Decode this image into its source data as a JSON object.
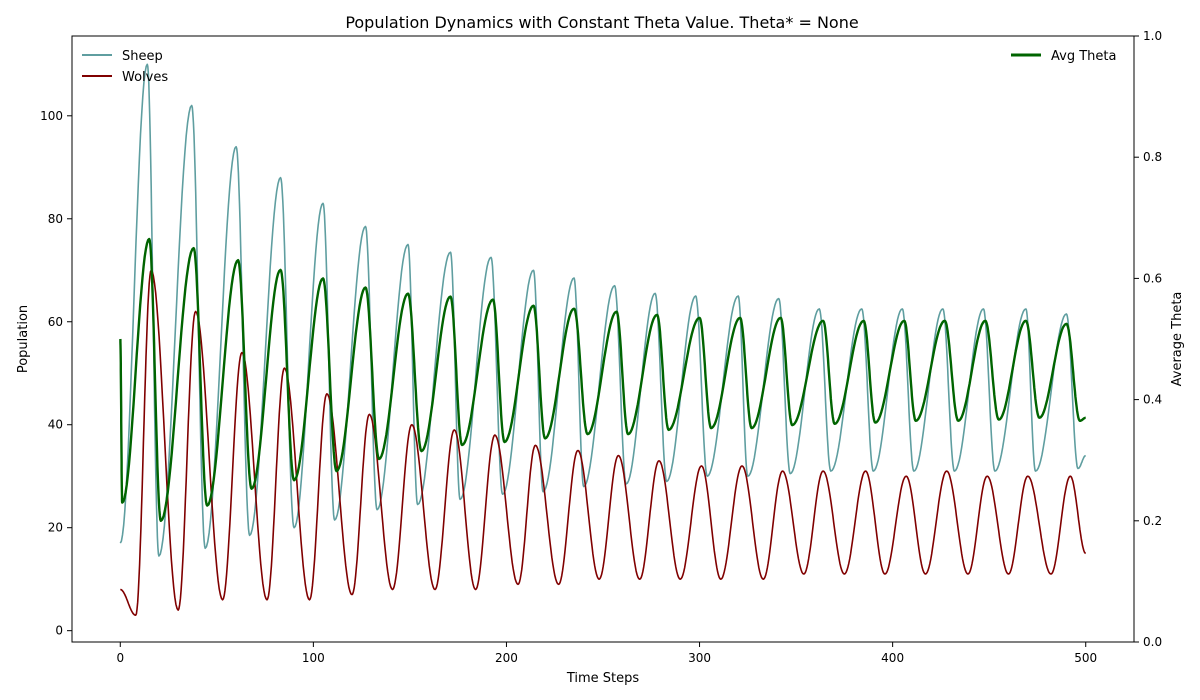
{
  "chart_data": {
    "type": "line",
    "title": "Population Dynamics with Constant Theta Value. Theta* = None",
    "xlabel": "Time Steps",
    "ylabel": "Population",
    "y2label": "Average Theta",
    "xlim": [
      -25,
      525
    ],
    "ylim": [
      -2.2,
      115.5
    ],
    "y2lim": [
      0.0,
      1.0
    ],
    "xticks": [
      0,
      100,
      200,
      300,
      400,
      500
    ],
    "yticks": [
      0,
      20,
      40,
      60,
      80,
      100
    ],
    "y2ticks": [
      "0.0",
      "0.2",
      "0.4",
      "0.6",
      "0.8",
      "1.0"
    ],
    "grid": false,
    "legend_left": {
      "placement": "top-left",
      "entries": [
        "Sheep",
        "Wolves"
      ]
    },
    "legend_right": {
      "placement": "top-right",
      "entries": [
        "Avg Theta"
      ]
    },
    "series": [
      {
        "name": "Sheep",
        "axis": "left",
        "color": "#5f9ea0",
        "peaks": [
          [
            14,
            110
          ],
          [
            37,
            102
          ],
          [
            60,
            94
          ],
          [
            83,
            88
          ],
          [
            105,
            83
          ],
          [
            127,
            78.5
          ],
          [
            149,
            75
          ],
          [
            171,
            73.5
          ],
          [
            192,
            72.5
          ],
          [
            214,
            70
          ],
          [
            235,
            68.5
          ],
          [
            256,
            67
          ],
          [
            277,
            65.5
          ],
          [
            298,
            65
          ],
          [
            320,
            65
          ],
          [
            341,
            64.5
          ],
          [
            362,
            62.5
          ],
          [
            384,
            62.5
          ],
          [
            405,
            62.5
          ],
          [
            426,
            62.5
          ],
          [
            447,
            62.5
          ],
          [
            469,
            62.5
          ],
          [
            490,
            61.5
          ]
        ],
        "troughs": [
          [
            0,
            17
          ],
          [
            20,
            14.5
          ],
          [
            44,
            16
          ],
          [
            67,
            18.5
          ],
          [
            90,
            20
          ],
          [
            111,
            21.5
          ],
          [
            133,
            23.5
          ],
          [
            154,
            24.5
          ],
          [
            176,
            25.5
          ],
          [
            198,
            26.5
          ],
          [
            219,
            27
          ],
          [
            240,
            28
          ],
          [
            262,
            28.5
          ],
          [
            283,
            29
          ],
          [
            304,
            30
          ],
          [
            325,
            30
          ],
          [
            347,
            30.5
          ],
          [
            368,
            31
          ],
          [
            390,
            31
          ],
          [
            411,
            31
          ],
          [
            432,
            31
          ],
          [
            453,
            31
          ],
          [
            474,
            31
          ],
          [
            496,
            31.5
          ]
        ],
        "end": [
          500,
          34
        ]
      },
      {
        "name": "Wolves",
        "axis": "left",
        "color": "#800000",
        "peaks": [
          [
            16,
            70
          ],
          [
            39,
            62
          ],
          [
            63,
            54
          ],
          [
            85,
            51
          ],
          [
            107,
            46
          ],
          [
            129,
            42
          ],
          [
            151,
            40
          ],
          [
            173,
            39
          ],
          [
            194,
            38
          ],
          [
            215,
            36
          ],
          [
            237,
            35
          ],
          [
            258,
            34
          ],
          [
            279,
            33
          ],
          [
            301,
            32
          ],
          [
            322,
            32
          ],
          [
            343,
            31
          ],
          [
            364,
            31
          ],
          [
            386,
            31
          ],
          [
            407,
            30
          ],
          [
            428,
            31
          ],
          [
            449,
            30
          ],
          [
            470,
            30
          ],
          [
            492,
            30
          ]
        ],
        "troughs": [
          [
            0,
            8
          ],
          [
            8,
            3
          ],
          [
            30,
            4
          ],
          [
            53,
            6
          ],
          [
            76,
            6
          ],
          [
            98,
            6
          ],
          [
            120,
            7
          ],
          [
            141,
            8
          ],
          [
            163,
            8
          ],
          [
            184,
            8
          ],
          [
            206,
            9
          ],
          [
            227,
            9
          ],
          [
            248,
            10
          ],
          [
            269,
            10
          ],
          [
            290,
            10
          ],
          [
            311,
            10
          ],
          [
            333,
            10
          ],
          [
            354,
            11
          ],
          [
            375,
            11
          ],
          [
            396,
            11
          ],
          [
            417,
            11
          ],
          [
            439,
            11
          ],
          [
            460,
            11
          ],
          [
            482,
            11
          ]
        ],
        "end": [
          500,
          15
        ]
      },
      {
        "name": "Avg Theta",
        "axis": "right",
        "color": "#006400",
        "start": [
          0,
          0.5
        ],
        "peaks": [
          [
            15,
            0.665
          ],
          [
            38,
            0.65
          ],
          [
            61,
            0.63
          ],
          [
            83,
            0.614
          ],
          [
            105,
            0.6
          ],
          [
            127,
            0.585
          ],
          [
            149,
            0.575
          ],
          [
            171,
            0.57
          ],
          [
            193,
            0.565
          ],
          [
            214,
            0.555
          ],
          [
            235,
            0.55
          ],
          [
            257,
            0.545
          ],
          [
            278,
            0.54
          ],
          [
            300,
            0.535
          ],
          [
            321,
            0.535
          ],
          [
            342,
            0.535
          ],
          [
            364,
            0.53
          ],
          [
            385,
            0.53
          ],
          [
            406,
            0.53
          ],
          [
            427,
            0.53
          ],
          [
            448,
            0.53
          ],
          [
            469,
            0.53
          ],
          [
            490,
            0.525
          ]
        ],
        "troughs": [
          [
            1,
            0.23
          ],
          [
            21,
            0.2
          ],
          [
            45,
            0.225
          ],
          [
            68,
            0.253
          ],
          [
            90,
            0.267
          ],
          [
            112,
            0.282
          ],
          [
            134,
            0.302
          ],
          [
            156,
            0.315
          ],
          [
            177,
            0.325
          ],
          [
            199,
            0.33
          ],
          [
            220,
            0.336
          ],
          [
            242,
            0.343
          ],
          [
            263,
            0.343
          ],
          [
            284,
            0.35
          ],
          [
            306,
            0.353
          ],
          [
            327,
            0.353
          ],
          [
            348,
            0.358
          ],
          [
            370,
            0.36
          ],
          [
            391,
            0.362
          ],
          [
            412,
            0.365
          ],
          [
            434,
            0.365
          ],
          [
            455,
            0.367
          ],
          [
            476,
            0.37
          ],
          [
            497,
            0.365
          ]
        ],
        "end": [
          500,
          0.37
        ]
      }
    ]
  }
}
